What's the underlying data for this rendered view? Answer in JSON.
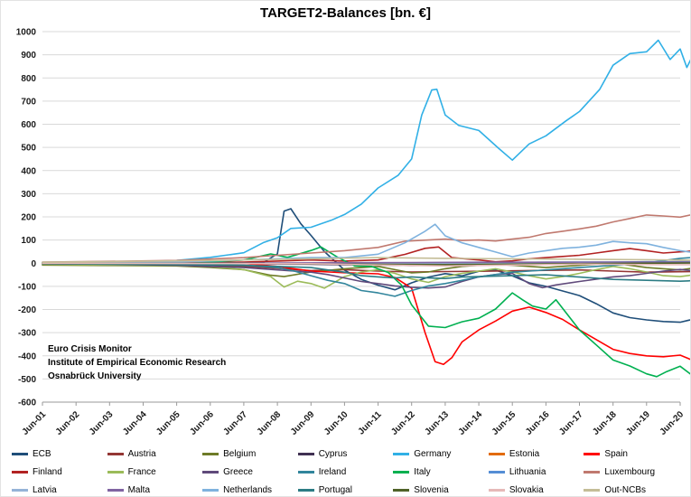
{
  "chart_data": {
    "type": "line",
    "title": "TARGET2-Balances [bn. €]",
    "xlabel": "",
    "ylabel": "",
    "ylim": [
      -600,
      1000
    ],
    "ytick_step": 100,
    "grid": true,
    "legend_position": "bottom",
    "x_max": 19,
    "x_labels": [
      "Jun-01",
      "Jun-02",
      "Jun-03",
      "Jun-04",
      "Jun-05",
      "Jun-06",
      "Jun-07",
      "Jun-08",
      "Jun-09",
      "Jun-10",
      "Jun-11",
      "Jun-12",
      "Jun-13",
      "Jun-14",
      "Jun-15",
      "Jun-16",
      "Jun-17",
      "Jun-18",
      "Jun-19",
      "Jun-20"
    ],
    "annotation": [
      "Euro Crisis Monitor",
      "Institute of Empirical Economic Research",
      "Osnabrück University"
    ],
    "series": [
      {
        "name": "ECB",
        "color": "#1F4E79",
        "x": [
          0,
          1,
          2,
          3,
          4,
          5,
          6,
          6.6,
          7.0,
          7.2,
          7.4,
          7.7,
          8,
          8.4,
          9,
          9.5,
          10,
          10.5,
          11,
          11.5,
          12,
          12.5,
          13,
          13.5,
          14,
          14.5,
          15,
          15.5,
          16,
          16.5,
          17,
          17.5,
          18,
          18.5,
          19,
          19.3,
          19.6,
          19.8,
          19.95
        ],
        "y": [
          0,
          0,
          0,
          0,
          0,
          0,
          0,
          5,
          40,
          225,
          235,
          170,
          120,
          50,
          -30,
          -70,
          -95,
          -115,
          -85,
          -60,
          -45,
          -55,
          -35,
          -30,
          -55,
          -85,
          -100,
          -120,
          -140,
          -175,
          -215,
          -235,
          -245,
          -252,
          -255,
          -245,
          -235,
          -230,
          -135
        ]
      },
      {
        "name": "Austria",
        "color": "#943634",
        "x": [
          0,
          2,
          4,
          6,
          7,
          8,
          9,
          10,
          11,
          12,
          13,
          14,
          15,
          16,
          17,
          18,
          19,
          19.95
        ],
        "y": [
          -3,
          -5,
          -8,
          -14,
          -22,
          -32,
          -28,
          -34,
          -38,
          -36,
          -35,
          -33,
          -31,
          -29,
          -34,
          -39,
          -37,
          -35
        ]
      },
      {
        "name": "Belgium",
        "color": "#6E7B27",
        "x": [
          0,
          2,
          4,
          5,
          6,
          6.8,
          7.2,
          8,
          9,
          10,
          10.5,
          11,
          11.5,
          12,
          12.5,
          13,
          13.5,
          14,
          14.5,
          15,
          15.5,
          16,
          16.5,
          17,
          17.5,
          18,
          18.5,
          19,
          19.5,
          19.95
        ],
        "y": [
          -8,
          -10,
          -12,
          -18,
          -28,
          -52,
          -58,
          -38,
          -24,
          -14,
          -28,
          -42,
          -38,
          -24,
          -14,
          -9,
          -5,
          -9,
          -14,
          -19,
          -14,
          -9,
          -4,
          1,
          -9,
          -19,
          -24,
          -29,
          -19,
          -24
        ]
      },
      {
        "name": "Cyprus",
        "color": "#403152",
        "x": [
          0,
          4,
          6,
          8,
          10,
          11,
          12,
          13,
          14,
          15,
          16,
          17,
          18,
          19,
          19.95
        ],
        "y": [
          0,
          -1,
          -2,
          -5,
          -8,
          -10,
          -8,
          -7,
          -5,
          -3,
          0,
          3,
          5,
          6,
          7
        ]
      },
      {
        "name": "Germany",
        "color": "#31B0E6",
        "x": [
          0,
          1,
          2,
          3,
          4,
          5,
          6,
          6.6,
          7,
          7.4,
          8,
          8.6,
          9,
          9.5,
          10,
          10.6,
          11,
          11.3,
          11.6,
          11.75,
          12,
          12.4,
          13,
          13.6,
          14,
          14.5,
          15,
          15.6,
          16,
          16.6,
          17,
          17.5,
          18,
          18.35,
          18.7,
          19,
          19.2,
          19.5,
          19.75,
          19.95
        ],
        "y": [
          2,
          3,
          4,
          7,
          12,
          25,
          45,
          90,
          110,
          150,
          155,
          185,
          210,
          255,
          325,
          380,
          450,
          640,
          748,
          751,
          640,
          595,
          573,
          495,
          445,
          515,
          550,
          615,
          655,
          750,
          855,
          905,
          913,
          963,
          880,
          925,
          845,
          935,
          872,
          990
        ]
      },
      {
        "name": "Estonia",
        "color": "#E26B0A",
        "x": [
          0,
          8,
          10,
          12,
          14,
          16,
          18,
          19.95
        ],
        "y": [
          0,
          0,
          1,
          2,
          3,
          3,
          4,
          4
        ]
      },
      {
        "name": "Spain",
        "color": "#FF0000",
        "x": [
          0,
          2,
          4,
          6,
          7,
          8,
          9,
          10,
          10.5,
          11,
          11.4,
          11.7,
          11.95,
          12.2,
          12.5,
          13,
          13.5,
          14,
          14.5,
          15,
          15.5,
          16,
          16.5,
          17,
          17.5,
          18,
          18.5,
          19,
          19.3,
          19.6,
          19.95
        ],
        "y": [
          -2,
          -3,
          -6,
          -1,
          -14,
          -34,
          -41,
          -46,
          -62,
          -108,
          -300,
          -425,
          -437,
          -408,
          -340,
          -288,
          -250,
          -207,
          -190,
          -213,
          -243,
          -288,
          -330,
          -372,
          -390,
          -400,
          -404,
          -397,
          -415,
          -440,
          -460
        ]
      },
      {
        "name": "Finland",
        "color": "#B22222",
        "x": [
          0,
          4,
          6,
          7,
          8,
          9,
          10,
          10.8,
          11.4,
          11.8,
          12.2,
          13,
          13.5,
          14,
          14.5,
          15,
          15.5,
          16,
          16.5,
          17,
          17.5,
          18,
          18.5,
          19,
          19.5,
          19.95
        ],
        "y": [
          0,
          2,
          5,
          9,
          14,
          9,
          14,
          38,
          64,
          70,
          24,
          14,
          6,
          10,
          19,
          24,
          29,
          34,
          44,
          54,
          63,
          54,
          44,
          49,
          54,
          60
        ]
      },
      {
        "name": "France",
        "color": "#9BBB59",
        "x": [
          0,
          2,
          4,
          5,
          6,
          6.8,
          7.2,
          7.6,
          8,
          8.4,
          9,
          9.5,
          10,
          10.5,
          11,
          11.5,
          12,
          12.5,
          13,
          13.5,
          14,
          14.5,
          15,
          15.5,
          16,
          16.5,
          17,
          17.5,
          18,
          18.5,
          19,
          19.5,
          19.95
        ],
        "y": [
          -5,
          -8,
          -10,
          -14,
          -28,
          -58,
          -103,
          -78,
          -88,
          -108,
          -58,
          -38,
          -28,
          -44,
          -68,
          -83,
          -58,
          -44,
          -34,
          -24,
          -38,
          -54,
          -68,
          -58,
          -44,
          -28,
          -14,
          -24,
          -38,
          -54,
          -58,
          -48,
          -46
        ]
      },
      {
        "name": "Greece",
        "color": "#604A7B",
        "x": [
          0,
          2,
          4,
          6,
          7,
          8,
          8.5,
          9,
          9.5,
          10,
          10.5,
          11,
          11.5,
          12,
          12.5,
          13,
          13.5,
          14,
          14.5,
          14.9,
          15.3,
          16,
          16.5,
          17,
          17.5,
          18,
          18.5,
          19,
          19.5,
          19.95
        ],
        "y": [
          -2,
          -5,
          -9,
          -19,
          -29,
          -39,
          -49,
          -64,
          -79,
          -88,
          -98,
          -104,
          -107,
          -103,
          -79,
          -59,
          -49,
          -44,
          -88,
          -106,
          -94,
          -79,
          -69,
          -59,
          -54,
          -44,
          -34,
          -27,
          -34,
          -44
        ]
      },
      {
        "name": "Ireland",
        "color": "#31859C",
        "x": [
          0,
          2,
          4,
          6,
          7,
          7.5,
          8,
          8.5,
          9,
          9.5,
          10,
          10.5,
          11,
          11.5,
          12,
          12.5,
          13,
          13.5,
          14,
          14.5,
          15,
          15.5,
          16,
          16.5,
          17,
          17.5,
          18,
          18.5,
          19,
          19.5,
          19.95
        ],
        "y": [
          -1,
          -2,
          -4,
          -9,
          -19,
          -34,
          -54,
          -74,
          -88,
          -118,
          -128,
          -143,
          -118,
          -98,
          -88,
          -74,
          -59,
          -49,
          -39,
          -34,
          -29,
          -24,
          -19,
          -14,
          -9,
          -4,
          1,
          11,
          21,
          26,
          34
        ]
      },
      {
        "name": "Italy",
        "color": "#00B050",
        "x": [
          0,
          2,
          4,
          6,
          6.8,
          7.3,
          8,
          8.3,
          8.8,
          9.3,
          9.8,
          10.3,
          10.7,
          11,
          11.5,
          12,
          12.5,
          13,
          13.5,
          14,
          14.3,
          14.6,
          15,
          15.3,
          16,
          16.5,
          17,
          17.5,
          18,
          18.3,
          18.6,
          19,
          19.3,
          19.6,
          19.95
        ],
        "y": [
          3,
          5,
          -4,
          14,
          40,
          25,
          55,
          70,
          25,
          -12,
          -14,
          -40,
          -95,
          -180,
          -272,
          -278,
          -253,
          -238,
          -198,
          -128,
          -158,
          -185,
          -198,
          -158,
          -288,
          -353,
          -418,
          -444,
          -478,
          -490,
          -468,
          -445,
          -478,
          -508,
          -542
        ]
      },
      {
        "name": "Lithuania",
        "color": "#558ED5",
        "x": [
          0,
          12,
          13,
          14,
          15,
          16,
          17,
          18,
          19.95
        ],
        "y": [
          0,
          0,
          1,
          3,
          4,
          5,
          5,
          6,
          6
        ]
      },
      {
        "name": "Luxembourg",
        "color": "#C0796F",
        "x": [
          0,
          2,
          4,
          6,
          7,
          8,
          9,
          10,
          10.8,
          11.5,
          12,
          12.5,
          13,
          13.5,
          14,
          14.5,
          15,
          15.5,
          16,
          16.5,
          17,
          17.5,
          18,
          18.5,
          19,
          19.5,
          19.95
        ],
        "y": [
          5,
          8,
          12,
          24,
          34,
          44,
          54,
          68,
          95,
          100,
          104,
          98,
          100,
          96,
          104,
          112,
          128,
          138,
          148,
          160,
          178,
          193,
          208,
          204,
          199,
          214,
          224
        ]
      },
      {
        "name": "Latvia",
        "color": "#95B3D7",
        "x": [
          0,
          12,
          14,
          16,
          18,
          19.95
        ],
        "y": [
          0,
          0,
          2,
          3,
          3,
          4
        ]
      },
      {
        "name": "Malta",
        "color": "#8064A2",
        "x": [
          0,
          7,
          9,
          11,
          13,
          15,
          17,
          19.95
        ],
        "y": [
          0,
          1,
          2,
          3,
          4,
          4,
          5,
          5
        ]
      },
      {
        "name": "Netherlands",
        "color": "#7FB2DE",
        "x": [
          0,
          2,
          4,
          6,
          7,
          8,
          9,
          10,
          10.8,
          11.4,
          11.7,
          12,
          12.5,
          13,
          13.5,
          14,
          14.5,
          15,
          15.5,
          16,
          16.5,
          17,
          17.5,
          18,
          18.5,
          19,
          19.5,
          19.95
        ],
        "y": [
          2,
          3,
          5,
          14,
          19,
          24,
          24,
          39,
          88,
          138,
          168,
          118,
          88,
          68,
          48,
          28,
          44,
          54,
          64,
          69,
          78,
          94,
          88,
          84,
          68,
          54,
          44,
          50
        ]
      },
      {
        "name": "Portugal",
        "color": "#2C7C84",
        "x": [
          0,
          2,
          4,
          6,
          7,
          8,
          8.5,
          9,
          9.5,
          10,
          10.5,
          11,
          11.5,
          12,
          12.5,
          13,
          14,
          15,
          16,
          17,
          18,
          19,
          19.95
        ],
        "y": [
          -2,
          -4,
          -6,
          -9,
          -14,
          -19,
          -29,
          -39,
          -54,
          -59,
          -64,
          -59,
          -64,
          -66,
          -60,
          -58,
          -54,
          -50,
          -60,
          -70,
          -74,
          -78,
          -72
        ]
      },
      {
        "name": "Slovenia",
        "color": "#4F6228",
        "x": [
          0,
          6,
          8,
          10,
          12,
          14,
          16,
          18,
          19.95
        ],
        "y": [
          0,
          -1,
          -3,
          -5,
          -6,
          -4,
          -2,
          0,
          1
        ]
      },
      {
        "name": "Slovakia",
        "color": "#E6B9B8",
        "x": [
          0,
          8,
          9,
          10,
          11,
          12,
          13,
          14,
          15,
          16,
          17,
          18,
          19.95
        ],
        "y": [
          0,
          -2,
          -5,
          -8,
          -10,
          -12,
          -10,
          -8,
          -6,
          -4,
          -5,
          -6,
          -7
        ]
      },
      {
        "name": "Out-NCBs",
        "color": "#C4BD97",
        "x": [
          0,
          2,
          4,
          6,
          8,
          10,
          12,
          14,
          16,
          18,
          19.95
        ],
        "y": [
          4,
          7,
          10,
          14,
          19,
          24,
          21,
          19,
          17,
          15,
          12
        ]
      }
    ]
  }
}
